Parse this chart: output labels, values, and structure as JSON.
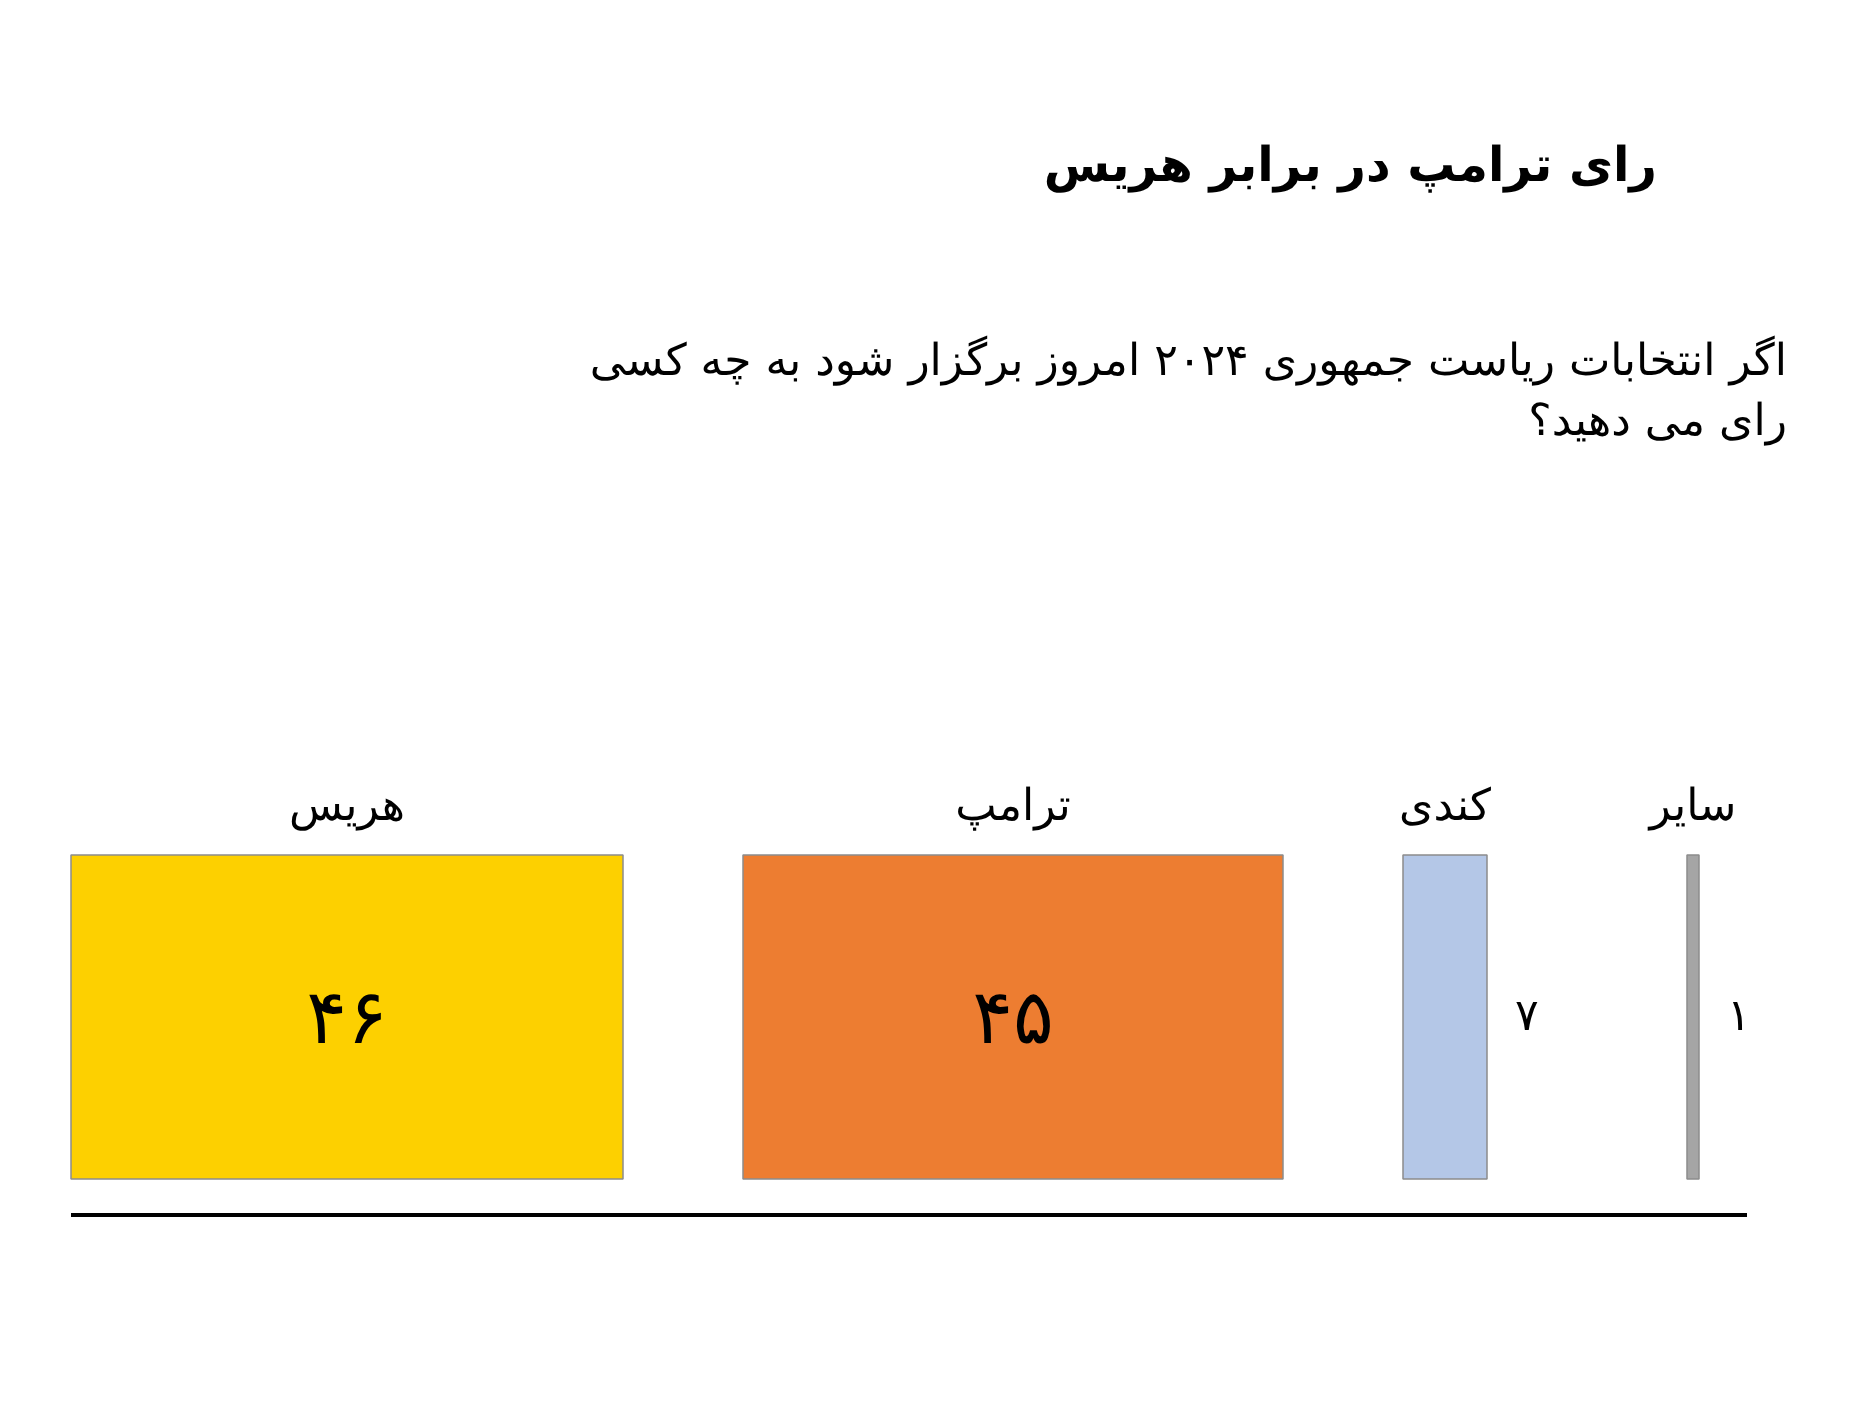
{
  "chart_data": {
    "type": "other",
    "title": "رای ترامپ در برابر هریس",
    "subtitle": "اگر انتخابات ریاست جمهوری ۲۰۲۴ امروز برگزار شود به چه کسی رای می دهید؟",
    "categories": [
      "هریس",
      "ترامپ",
      "کندی",
      "سایر"
    ],
    "values": [
      46,
      45,
      7,
      1
    ],
    "colors": [
      "#fdd000",
      "#ed7d31",
      "#b4c7e7",
      "#a5a5a5"
    ],
    "value_labels": [
      "۴۶",
      "۴۵",
      "۷",
      "۱"
    ]
  }
}
